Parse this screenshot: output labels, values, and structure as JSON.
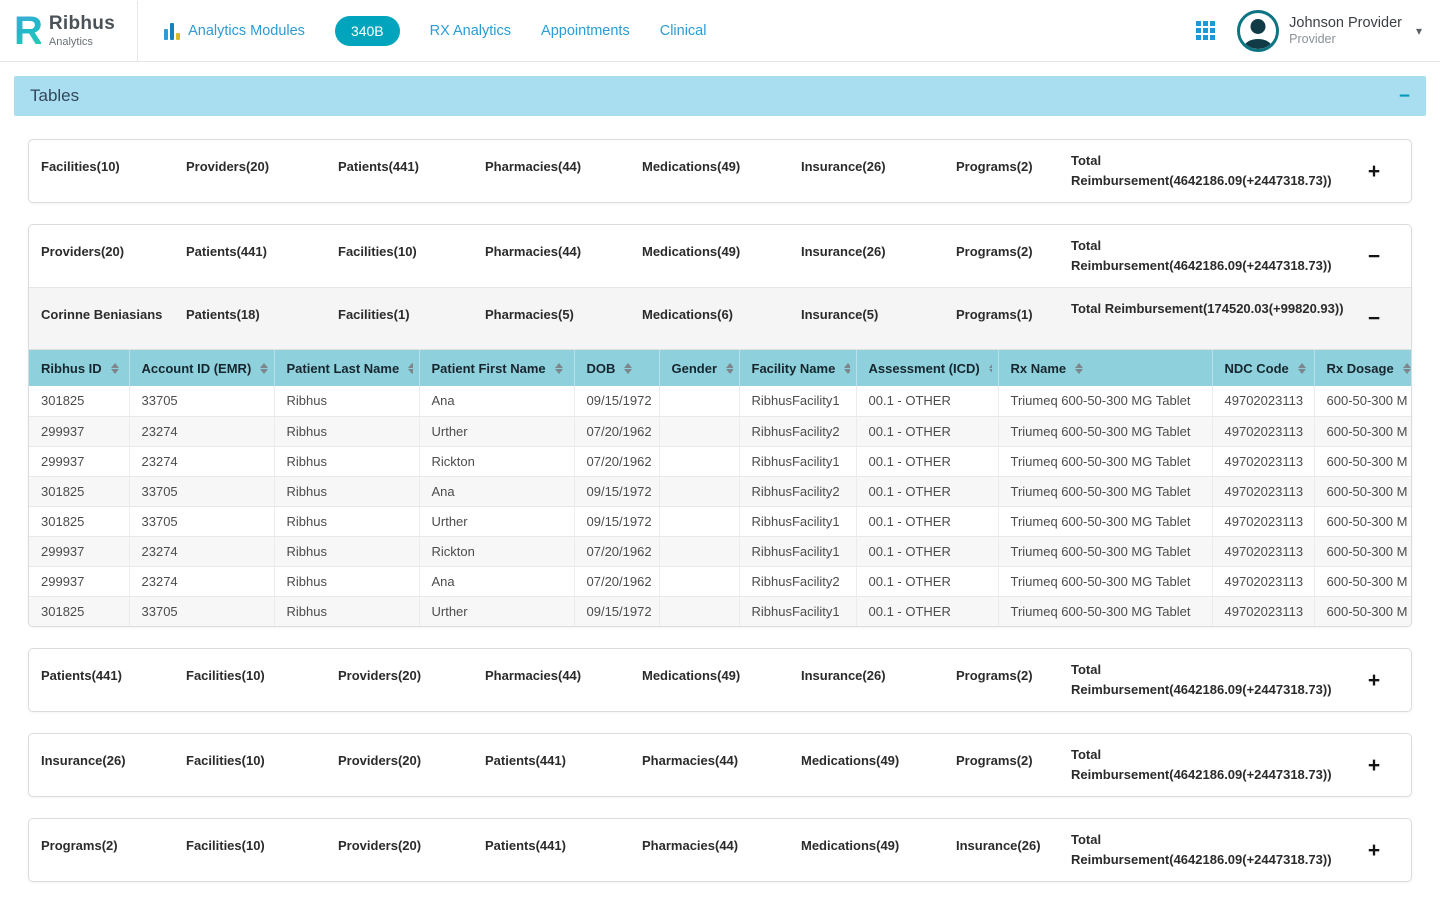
{
  "header": {
    "brand": {
      "mark": "R",
      "name": "Ribhus",
      "sub": "Analytics"
    },
    "nav": {
      "analytics_modules": "Analytics Modules",
      "pill_340b": "340B",
      "rx_analytics": "RX Analytics",
      "appointments": "Appointments",
      "clinical": "Clinical"
    },
    "user": {
      "name": "Johnson Provider",
      "role": "Provider",
      "caret": "▾"
    }
  },
  "section": {
    "title": "Tables",
    "collapse_icon": "−"
  },
  "colors": {
    "accent_teal": "#00a4bc",
    "section_bar": "#a9def0",
    "table_header": "#8ed1dd",
    "link_blue": "#2b9cd4"
  },
  "accordions": [
    {
      "items": [
        "Facilities(10)",
        "Providers(20)",
        "Patients(441)",
        "Pharmacies(44)",
        "Medications(49)",
        "Insurance(26)",
        "Programs(2)"
      ],
      "total": "Total Reimbursement(4642186.09(+2447318.73))",
      "toggle": "+"
    },
    {
      "items": [
        "Providers(20)",
        "Patients(441)",
        "Facilities(10)",
        "Pharmacies(44)",
        "Medications(49)",
        "Insurance(26)",
        "Programs(2)"
      ],
      "total": "Total Reimbursement(4642186.09(+2447318.73))",
      "toggle": "−",
      "subrow": {
        "items": [
          "Corinne Beniasians",
          "Patients(18)",
          "Facilities(1)",
          "Pharmacies(5)",
          "Medications(6)",
          "Insurance(5)",
          "Programs(1)"
        ],
        "total": "Total Reimbursement(174520.03(+99820.93))",
        "toggle": "−"
      },
      "table": {
        "columns": [
          "Ribhus ID",
          "Account ID (EMR)",
          "Patient Last Name",
          "Patient First Name",
          "DOB",
          "Gender",
          "Facility Name",
          "Assessment (ICD)",
          "Rx Name",
          "NDC Code",
          "Rx Dosage"
        ],
        "rows": [
          [
            "301825",
            "33705",
            "Ribhus",
            "Ana",
            "09/15/1972",
            "",
            "RibhusFacility1",
            "00.1 - OTHER",
            "Triumeq 600-50-300 MG Tablet",
            "49702023113",
            "600-50-300 M"
          ],
          [
            "299937",
            "23274",
            "Ribhus",
            "Urther",
            "07/20/1962",
            "",
            "RibhusFacility2",
            "00.1 - OTHER",
            "Triumeq 600-50-300 MG Tablet",
            "49702023113",
            "600-50-300 M"
          ],
          [
            "299937",
            "23274",
            "Ribhus",
            "Rickton",
            "07/20/1962",
            "",
            "RibhusFacility1",
            "00.1 - OTHER",
            "Triumeq 600-50-300 MG Tablet",
            "49702023113",
            "600-50-300 M"
          ],
          [
            "301825",
            "33705",
            "Ribhus",
            "Ana",
            "09/15/1972",
            "",
            "RibhusFacility2",
            "00.1 - OTHER",
            "Triumeq 600-50-300 MG Tablet",
            "49702023113",
            "600-50-300 M"
          ],
          [
            "301825",
            "33705",
            "Ribhus",
            "Urther",
            "09/15/1972",
            "",
            "RibhusFacility1",
            "00.1 - OTHER",
            "Triumeq 600-50-300 MG Tablet",
            "49702023113",
            "600-50-300 M"
          ],
          [
            "299937",
            "23274",
            "Ribhus",
            "Rickton",
            "07/20/1962",
            "",
            "RibhusFacility1",
            "00.1 - OTHER",
            "Triumeq 600-50-300 MG Tablet",
            "49702023113",
            "600-50-300 M"
          ],
          [
            "299937",
            "23274",
            "Ribhus",
            "Ana",
            "07/20/1962",
            "",
            "RibhusFacility2",
            "00.1 - OTHER",
            "Triumeq 600-50-300 MG Tablet",
            "49702023113",
            "600-50-300 M"
          ],
          [
            "301825",
            "33705",
            "Ribhus",
            "Urther",
            "09/15/1972",
            "",
            "RibhusFacility1",
            "00.1 - OTHER",
            "Triumeq 600-50-300 MG Tablet",
            "49702023113",
            "600-50-300 M"
          ]
        ]
      }
    },
    {
      "items": [
        "Patients(441)",
        "Facilities(10)",
        "Providers(20)",
        "Pharmacies(44)",
        "Medications(49)",
        "Insurance(26)",
        "Programs(2)"
      ],
      "total": "Total Reimbursement(4642186.09(+2447318.73))",
      "toggle": "+"
    },
    {
      "items": [
        "Insurance(26)",
        "Facilities(10)",
        "Providers(20)",
        "Patients(441)",
        "Pharmacies(44)",
        "Medications(49)",
        "Programs(2)"
      ],
      "total": "Total Reimbursement(4642186.09(+2447318.73))",
      "toggle": "+"
    },
    {
      "items": [
        "Programs(2)",
        "Facilities(10)",
        "Providers(20)",
        "Patients(441)",
        "Pharmacies(44)",
        "Medications(49)",
        "Insurance(26)"
      ],
      "total": "Total Reimbursement(4642186.09(+2447318.73))",
      "toggle": "+"
    }
  ]
}
